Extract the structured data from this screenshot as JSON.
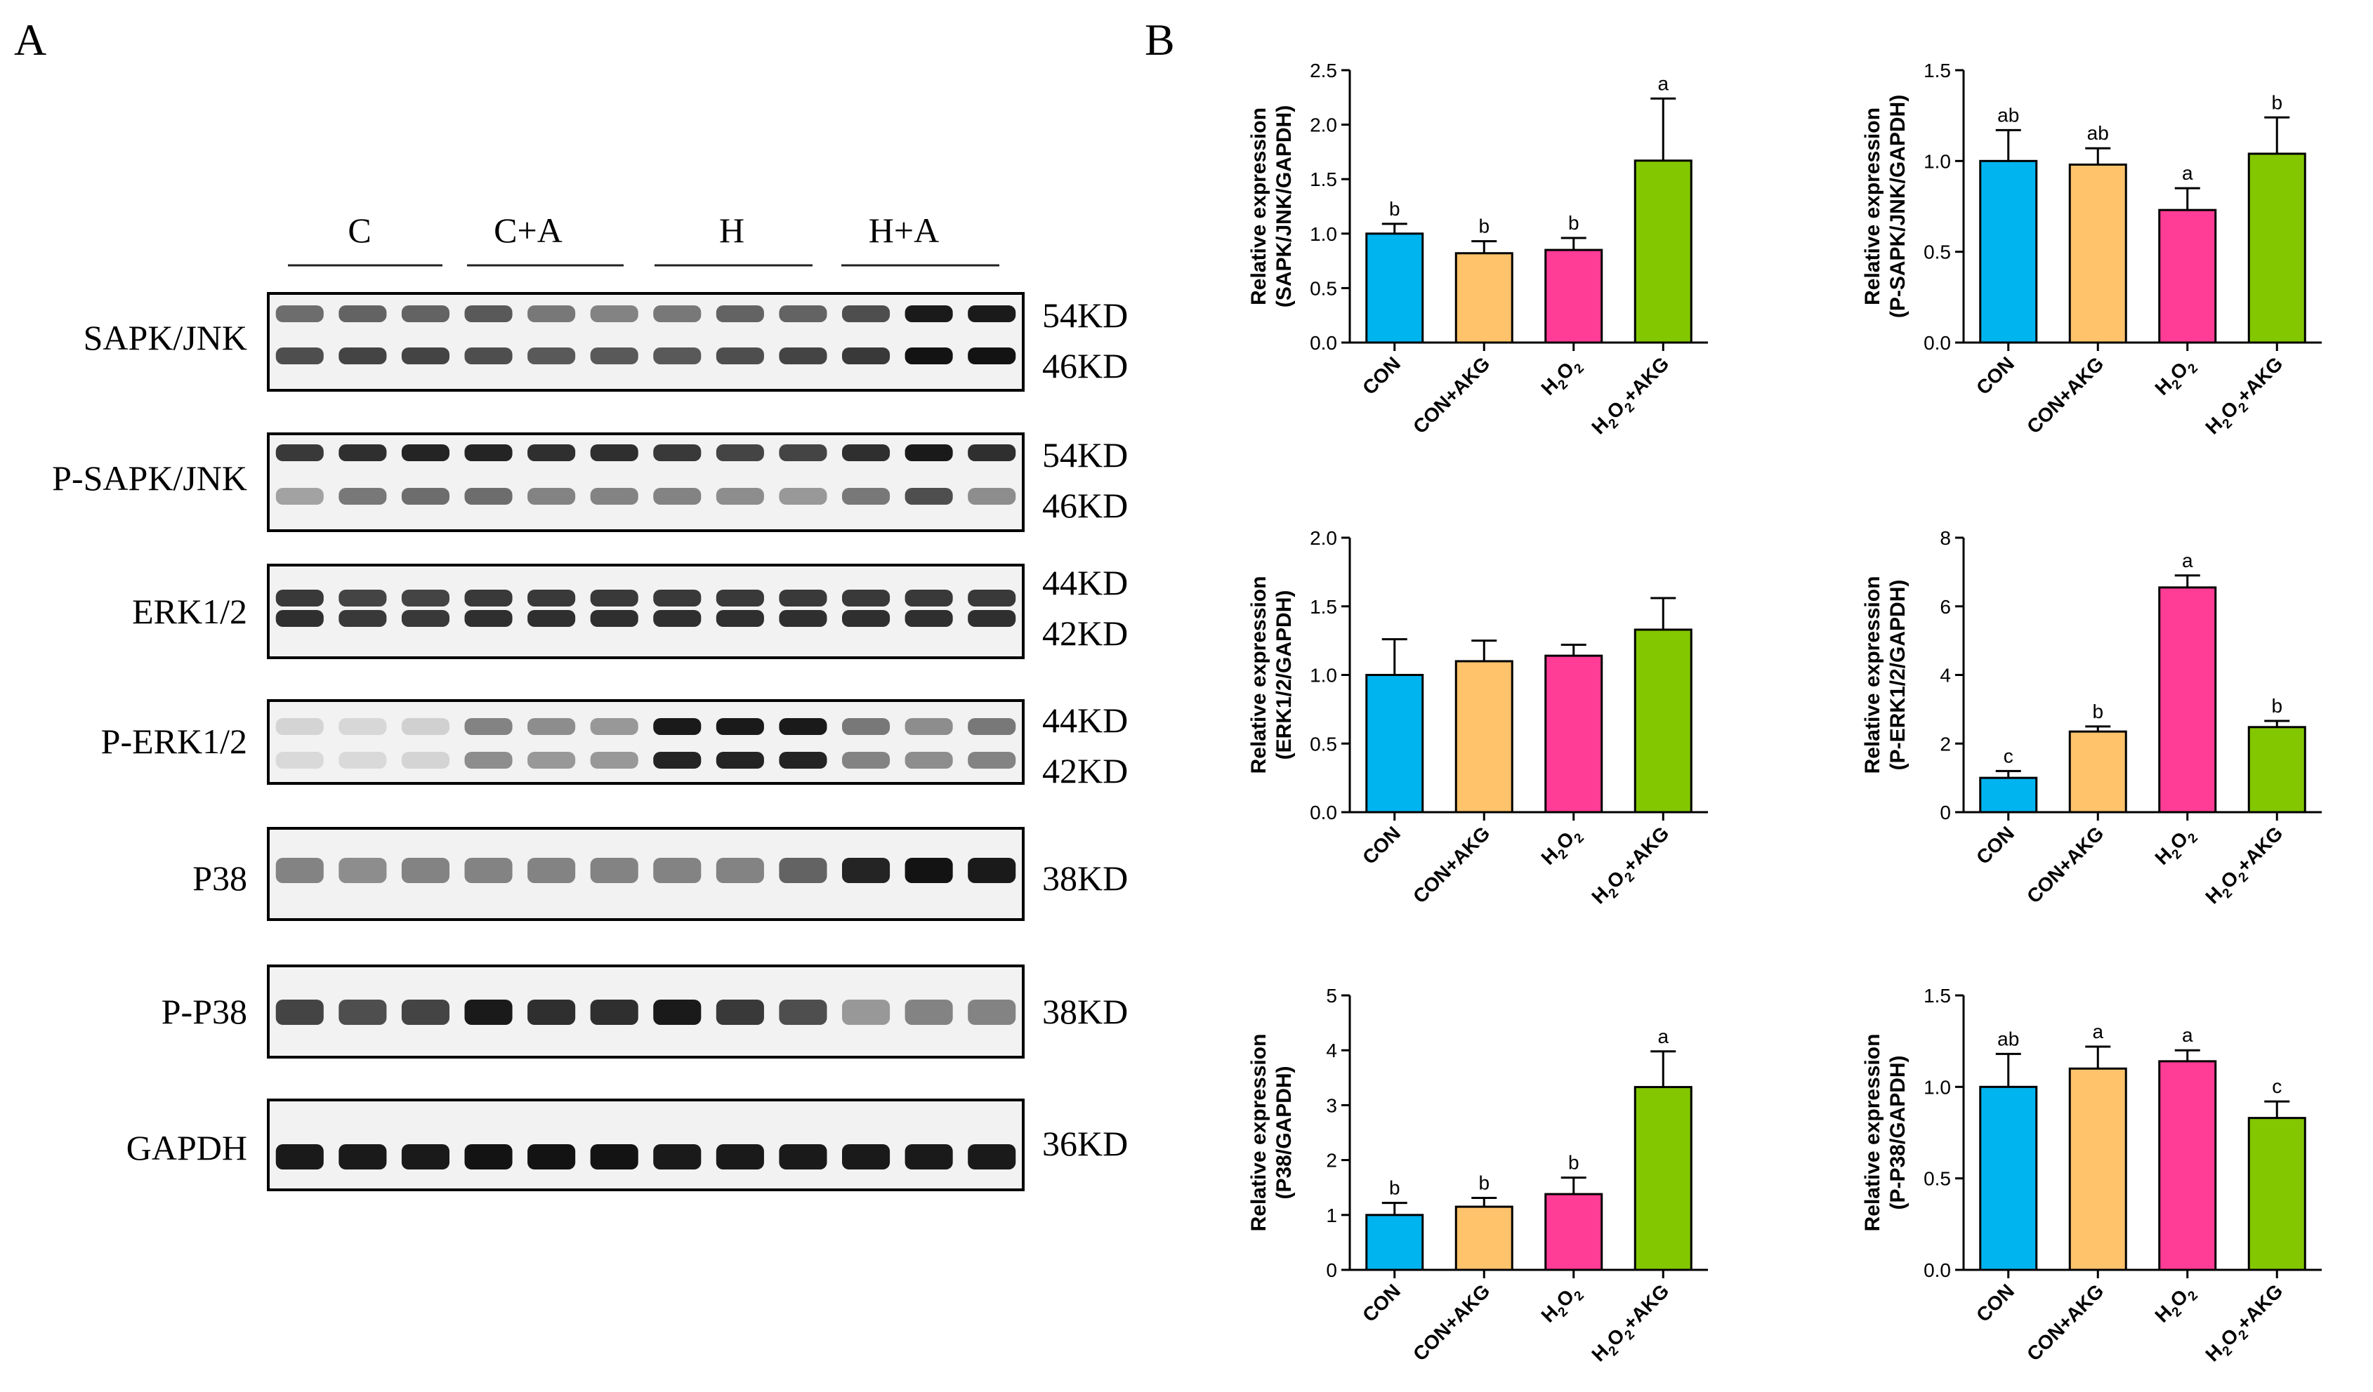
{
  "panel_a": {
    "letter": "A",
    "groups": [
      "C",
      "C+A",
      "H",
      "H+A"
    ],
    "blots": [
      {
        "label": "SAPK/JNK",
        "bands": [
          "54KD",
          "46KD"
        ],
        "rows": [
          [
            0.55,
            0.6,
            0.6,
            0.65,
            0.5,
            0.45,
            0.5,
            0.6,
            0.6,
            0.7,
            0.95,
            0.95
          ],
          [
            0.7,
            0.75,
            0.75,
            0.7,
            0.65,
            0.65,
            0.65,
            0.7,
            0.75,
            0.8,
            0.98,
            0.98
          ]
        ]
      },
      {
        "label": "P-SAPK/JNK",
        "bands": [
          "54KD",
          "46KD"
        ],
        "rows": [
          [
            0.8,
            0.85,
            0.9,
            0.9,
            0.85,
            0.85,
            0.8,
            0.75,
            0.75,
            0.85,
            0.95,
            0.85
          ],
          [
            0.3,
            0.5,
            0.55,
            0.55,
            0.45,
            0.45,
            0.45,
            0.4,
            0.35,
            0.5,
            0.7,
            0.4
          ]
        ]
      },
      {
        "label": "ERK1/2",
        "bands": [
          "44KD",
          "42KD"
        ],
        "rows": [
          [
            0.8,
            0.75,
            0.75,
            0.8,
            0.8,
            0.8,
            0.8,
            0.8,
            0.8,
            0.8,
            0.8,
            0.8
          ],
          [
            0.85,
            0.8,
            0.8,
            0.85,
            0.85,
            0.85,
            0.85,
            0.85,
            0.85,
            0.85,
            0.85,
            0.85
          ]
        ]
      },
      {
        "label": "P-ERK1/2",
        "bands": [
          "44KD",
          "42KD"
        ],
        "rows": [
          [
            0.06,
            0.05,
            0.08,
            0.45,
            0.4,
            0.35,
            0.95,
            0.95,
            0.95,
            0.5,
            0.4,
            0.5
          ],
          [
            0.04,
            0.04,
            0.06,
            0.4,
            0.35,
            0.35,
            0.9,
            0.9,
            0.9,
            0.45,
            0.4,
            0.45
          ]
        ]
      },
      {
        "label": "P38",
        "bands": [
          "38KD"
        ],
        "rows": [
          [
            0.45,
            0.4,
            0.45,
            0.45,
            0.45,
            0.45,
            0.45,
            0.45,
            0.6,
            0.9,
            0.98,
            0.95
          ]
        ]
      },
      {
        "label": "P-P38",
        "bands": [
          "38KD"
        ],
        "rows": [
          [
            0.75,
            0.7,
            0.75,
            0.95,
            0.85,
            0.85,
            0.95,
            0.8,
            0.7,
            0.35,
            0.45,
            0.45
          ]
        ]
      },
      {
        "label": "GAPDH",
        "bands": [
          "36KD"
        ],
        "rows": [
          [
            0.95,
            0.95,
            0.95,
            0.98,
            0.98,
            0.98,
            0.95,
            0.95,
            0.95,
            0.95,
            0.95,
            0.95
          ]
        ]
      }
    ]
  },
  "panel_b": {
    "letter": "B"
  },
  "colors": {
    "CON": "#00b4ef",
    "CON+AKG": "#ffc36b",
    "H2O2": "#ff3c96",
    "H2O2+AKG": "#83c700"
  },
  "chart_data": [
    {
      "type": "bar",
      "ylabel": [
        "Relative expression",
        "(SAPK/JNK/GAPDH)"
      ],
      "categories": [
        "CON",
        "CON+AKG",
        "H2O2",
        "H2O2+AKG"
      ],
      "values": [
        1.0,
        0.82,
        0.85,
        1.67
      ],
      "errors": [
        0.09,
        0.11,
        0.11,
        0.57
      ],
      "letters": [
        "b",
        "b",
        "b",
        "a"
      ],
      "ylim": [
        0,
        2.5
      ],
      "yticks": [
        "0.0",
        "0.5",
        "1.0",
        "1.5",
        "2.0",
        "2.5"
      ]
    },
    {
      "type": "bar",
      "ylabel": [
        "Relative expression",
        "(P-SAPK/JNK/GAPDH)"
      ],
      "categories": [
        "CON",
        "CON+AKG",
        "H2O2",
        "H2O2+AKG"
      ],
      "values": [
        1.0,
        0.98,
        0.73,
        1.04
      ],
      "errors": [
        0.17,
        0.09,
        0.12,
        0.2
      ],
      "letters": [
        "ab",
        "ab",
        "a",
        "b"
      ],
      "ylim": [
        0,
        1.5
      ],
      "yticks": [
        "0.0",
        "0.5",
        "1.0",
        "1.5"
      ]
    },
    {
      "type": "bar",
      "ylabel": [
        "Relative expression",
        "(ERK1/2/GAPDH)"
      ],
      "categories": [
        "CON",
        "CON+AKG",
        "H2O2",
        "H2O2+AKG"
      ],
      "values": [
        1.0,
        1.1,
        1.14,
        1.33
      ],
      "errors": [
        0.26,
        0.15,
        0.08,
        0.23
      ],
      "letters": [
        "",
        "",
        "",
        ""
      ],
      "ylim": [
        0,
        2.0
      ],
      "yticks": [
        "0.0",
        "0.5",
        "1.0",
        "1.5",
        "2.0"
      ]
    },
    {
      "type": "bar",
      "ylabel": [
        "Relative expression",
        "(P-ERK1/2/GAPDH)"
      ],
      "categories": [
        "CON",
        "CON+AKG",
        "H2O2",
        "H2O2+AKG"
      ],
      "values": [
        1.0,
        2.35,
        6.55,
        2.48
      ],
      "errors": [
        0.2,
        0.15,
        0.35,
        0.18
      ],
      "letters": [
        "c",
        "b",
        "a",
        "b"
      ],
      "ylim": [
        0,
        8
      ],
      "yticks": [
        "0",
        "2",
        "4",
        "6",
        "8"
      ]
    },
    {
      "type": "bar",
      "ylabel": [
        "Relative expression",
        "(P38/GAPDH)"
      ],
      "categories": [
        "CON",
        "CON+AKG",
        "H2O2",
        "H2O2+AKG"
      ],
      "values": [
        1.0,
        1.15,
        1.38,
        3.33
      ],
      "errors": [
        0.22,
        0.16,
        0.3,
        0.65
      ],
      "letters": [
        "b",
        "b",
        "b",
        "a"
      ],
      "ylim": [
        0,
        5
      ],
      "yticks": [
        "0",
        "1",
        "2",
        "3",
        "4",
        "5"
      ]
    },
    {
      "type": "bar",
      "ylabel": [
        "Relative expression",
        "(P-P38/GAPDH)"
      ],
      "categories": [
        "CON",
        "CON+AKG",
        "H2O2",
        "H2O2+AKG"
      ],
      "values": [
        1.0,
        1.1,
        1.14,
        0.83
      ],
      "errors": [
        0.18,
        0.12,
        0.06,
        0.09
      ],
      "letters": [
        "ab",
        "a",
        "a",
        "c"
      ],
      "ylim": [
        0,
        1.5
      ],
      "yticks": [
        "0.0",
        "0.5",
        "1.0",
        "1.5"
      ]
    }
  ]
}
